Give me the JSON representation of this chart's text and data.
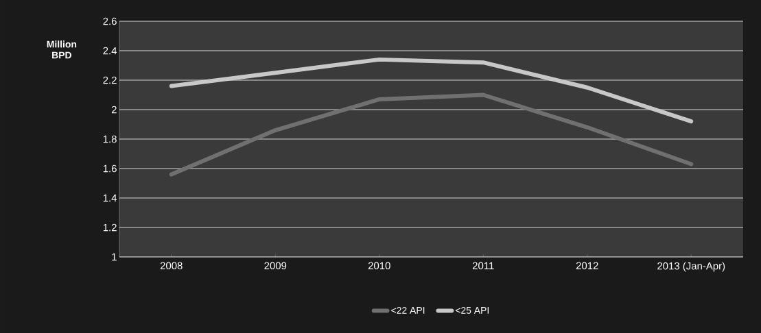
{
  "chart_data": {
    "type": "line",
    "ylabel": "Million BPD",
    "categories": [
      "2008",
      "2009",
      "2010",
      "2011",
      "2012",
      "2013 (Jan-Apr)"
    ],
    "series": [
      {
        "name": "<22 API",
        "color": "#707070",
        "values": [
          1.56,
          1.86,
          2.07,
          2.1,
          1.88,
          1.63
        ]
      },
      {
        "name": "<25 API",
        "color": "#c8c8c8",
        "values": [
          2.16,
          2.25,
          2.34,
          2.32,
          2.15,
          1.92
        ]
      }
    ],
    "ylim": [
      1,
      2.6
    ],
    "yticks": [
      1,
      1.2,
      1.4,
      1.6,
      1.8,
      2,
      2.2,
      2.4,
      2.6
    ],
    "grid": "y",
    "legend": "bottom",
    "marker": "none",
    "line_style": "solid"
  }
}
